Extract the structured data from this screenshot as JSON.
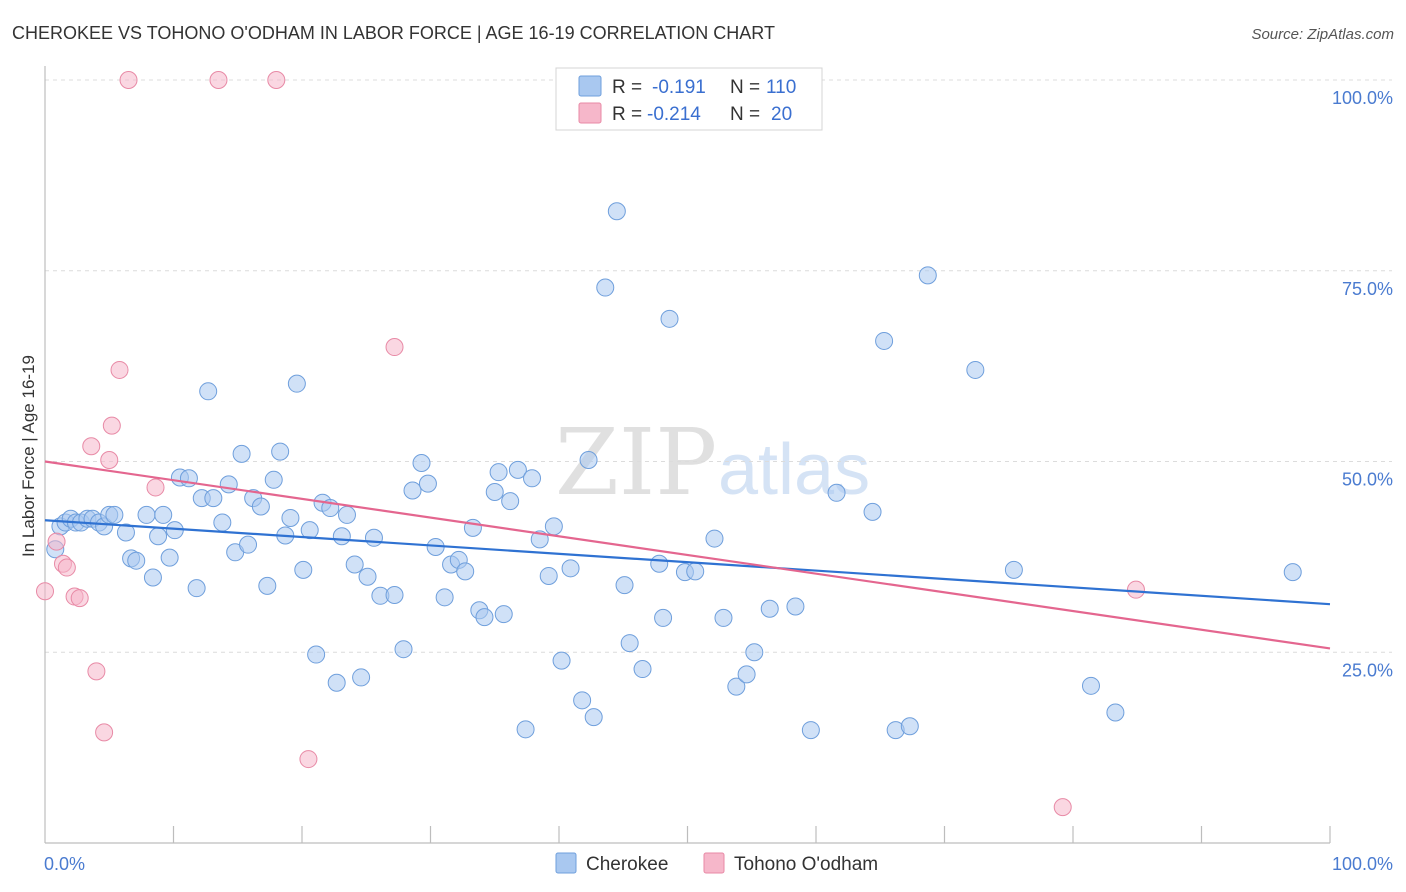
{
  "header": {
    "title": "CHEROKEE VS TOHONO O'ODHAM IN LABOR FORCE | AGE 16-19 CORRELATION CHART",
    "source": "Source: ZipAtlas.com"
  },
  "watermark": {
    "zip": "ZIP",
    "atlas": "atlas"
  },
  "legend_top": {
    "rows": [
      {
        "r_label": "R =",
        "r_value": "-0.191",
        "n_label": "N =",
        "n_value": "110",
        "color": "#a9c8f0"
      },
      {
        "r_label": "R =",
        "r_value": "-0.214",
        "n_label": "N =",
        "n_value": "20",
        "color": "#f6b7ca"
      }
    ]
  },
  "legend_bottom": {
    "items": [
      {
        "label": "Cherokee",
        "color": "#a9c8f0"
      },
      {
        "label": "Tohono O'odham",
        "color": "#f6b7ca"
      }
    ]
  },
  "colors": {
    "cherokee_fill": "#a9c8f0",
    "cherokee_stroke": "#6f9fdc",
    "cherokee_line": "#2f72d2",
    "tohono_fill": "#f6b7ca",
    "tohono_stroke": "#e88aa6",
    "tohono_line": "#e4668f",
    "tick_text": "#4a7bd0"
  },
  "chart_data": {
    "type": "scatter",
    "title": "CHEROKEE VS TOHONO O'ODHAM IN LABOR FORCE | AGE 16-19 CORRELATION CHART",
    "xlabel": "",
    "ylabel": "In Labor Force | Age 16-19",
    "xlim": [
      0,
      100
    ],
    "ylim": [
      0,
      100
    ],
    "x_tick_labels": [
      "0.0%",
      "100.0%"
    ],
    "y_tick_labels": [
      "25.0%",
      "50.0%",
      "75.0%",
      "100.0%"
    ],
    "y_ticks": [
      25,
      50,
      75,
      100
    ],
    "grid": true,
    "legend_position": "top-center",
    "series": [
      {
        "name": "Cherokee",
        "points": [
          [
            0.8,
            38.5
          ],
          [
            1.2,
            41.5
          ],
          [
            1.6,
            42.0
          ],
          [
            2.0,
            42.5
          ],
          [
            2.4,
            42.0
          ],
          [
            2.8,
            42.0
          ],
          [
            3.3,
            42.5
          ],
          [
            3.7,
            42.5
          ],
          [
            4.2,
            42.0
          ],
          [
            4.6,
            41.5
          ],
          [
            5.0,
            43.0
          ],
          [
            5.4,
            43.0
          ],
          [
            6.3,
            40.7
          ],
          [
            6.7,
            37.3
          ],
          [
            7.1,
            37.0
          ],
          [
            7.9,
            43.0
          ],
          [
            8.4,
            34.8
          ],
          [
            8.8,
            40.2
          ],
          [
            9.2,
            43.0
          ],
          [
            9.7,
            37.4
          ],
          [
            10.1,
            41.0
          ],
          [
            10.5,
            47.9
          ],
          [
            11.2,
            47.8
          ],
          [
            11.8,
            33.4
          ],
          [
            12.2,
            45.2
          ],
          [
            12.7,
            59.2
          ],
          [
            13.1,
            45.2
          ],
          [
            13.8,
            42.0
          ],
          [
            14.3,
            47.0
          ],
          [
            14.8,
            38.1
          ],
          [
            15.3,
            51.0
          ],
          [
            15.8,
            39.1
          ],
          [
            16.2,
            45.2
          ],
          [
            16.8,
            44.1
          ],
          [
            17.3,
            33.7
          ],
          [
            17.8,
            47.6
          ],
          [
            18.3,
            51.3
          ],
          [
            18.7,
            40.3
          ],
          [
            19.1,
            42.6
          ],
          [
            19.6,
            60.2
          ],
          [
            20.1,
            35.8
          ],
          [
            20.6,
            41.0
          ],
          [
            21.1,
            24.7
          ],
          [
            21.6,
            44.6
          ],
          [
            22.2,
            43.9
          ],
          [
            22.7,
            21.0
          ],
          [
            23.1,
            40.2
          ],
          [
            23.5,
            43.0
          ],
          [
            24.1,
            36.5
          ],
          [
            24.6,
            21.7
          ],
          [
            25.1,
            34.9
          ],
          [
            25.6,
            40.0
          ],
          [
            26.1,
            32.4
          ],
          [
            27.2,
            32.5
          ],
          [
            27.9,
            25.4
          ],
          [
            28.6,
            46.2
          ],
          [
            29.3,
            49.8
          ],
          [
            29.8,
            47.1
          ],
          [
            30.4,
            38.8
          ],
          [
            31.1,
            32.2
          ],
          [
            31.6,
            36.5
          ],
          [
            32.2,
            37.1
          ],
          [
            32.7,
            35.6
          ],
          [
            33.3,
            41.3
          ],
          [
            33.8,
            30.5
          ],
          [
            34.2,
            29.6
          ],
          [
            35.0,
            46.0
          ],
          [
            35.3,
            48.6
          ],
          [
            35.7,
            30.0
          ],
          [
            36.2,
            44.8
          ],
          [
            36.8,
            48.9
          ],
          [
            37.4,
            14.9
          ],
          [
            37.9,
            47.8
          ],
          [
            38.5,
            39.8
          ],
          [
            39.2,
            35.0
          ],
          [
            39.6,
            41.5
          ],
          [
            40.2,
            23.9
          ],
          [
            40.9,
            36.0
          ],
          [
            41.8,
            18.7
          ],
          [
            42.3,
            50.2
          ],
          [
            42.7,
            16.5
          ],
          [
            43.6,
            72.8
          ],
          [
            44.5,
            82.8
          ],
          [
            45.1,
            33.8
          ],
          [
            45.5,
            26.2
          ],
          [
            46.5,
            22.8
          ],
          [
            47.8,
            36.6
          ],
          [
            48.1,
            29.5
          ],
          [
            48.6,
            68.7
          ],
          [
            49.8,
            35.5
          ],
          [
            50.6,
            35.6
          ],
          [
            52.1,
            39.9
          ],
          [
            52.8,
            29.5
          ],
          [
            53.8,
            20.5
          ],
          [
            54.6,
            22.1
          ],
          [
            55.2,
            25.0
          ],
          [
            56.4,
            30.7
          ],
          [
            58.4,
            31.0
          ],
          [
            59.6,
            14.8
          ],
          [
            61.6,
            45.9
          ],
          [
            64.4,
            43.4
          ],
          [
            65.3,
            65.8
          ],
          [
            66.2,
            14.8
          ],
          [
            67.3,
            15.3
          ],
          [
            68.7,
            74.4
          ],
          [
            72.4,
            62.0
          ],
          [
            75.4,
            35.8
          ],
          [
            81.4,
            20.6
          ],
          [
            83.3,
            17.1
          ],
          [
            97.1,
            35.5
          ]
        ],
        "trend": {
          "x": [
            0,
            100
          ],
          "y": [
            42.3,
            31.3
          ]
        }
      },
      {
        "name": "Tohono O'odham",
        "points": [
          [
            0.0,
            33.0
          ],
          [
            0.9,
            39.5
          ],
          [
            1.4,
            36.6
          ],
          [
            1.7,
            36.1
          ],
          [
            2.3,
            32.3
          ],
          [
            2.7,
            32.1
          ],
          [
            3.6,
            52.0
          ],
          [
            4.0,
            22.5
          ],
          [
            4.6,
            14.5
          ],
          [
            5.0,
            50.2
          ],
          [
            5.2,
            54.7
          ],
          [
            5.8,
            62.0
          ],
          [
            8.6,
            46.6
          ],
          [
            6.5,
            100.0
          ],
          [
            13.5,
            100.0
          ],
          [
            18.0,
            100.0
          ],
          [
            20.5,
            11.0
          ],
          [
            27.2,
            65.0
          ],
          [
            84.9,
            33.2
          ],
          [
            79.2,
            4.7
          ]
        ],
        "trend": {
          "x": [
            0,
            100
          ],
          "y": [
            50.0,
            25.5
          ]
        }
      }
    ]
  }
}
